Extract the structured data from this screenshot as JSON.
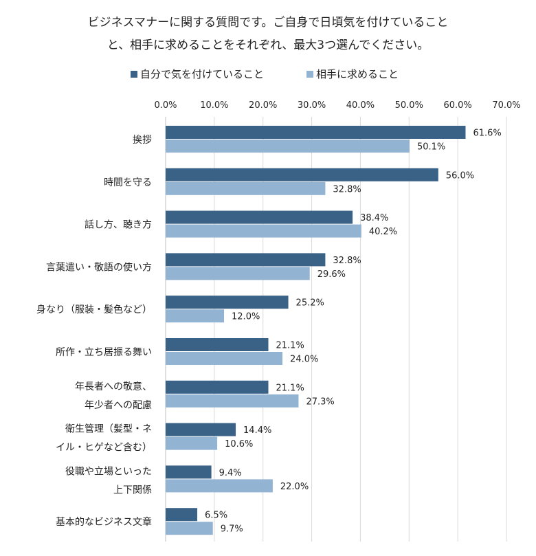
{
  "chart_data": {
    "type": "bar",
    "orientation": "horizontal",
    "title_lines": [
      "ビジネスマナーに関する質問です。ご自身で日頃気を付けていること",
      "と、相手に求めることをそれぞれ、最大3つ選んでください。"
    ],
    "legend_position": "top",
    "grid": true,
    "xlim": [
      0,
      70
    ],
    "x_ticks": [
      "0.0%",
      "10.0%",
      "20.0%",
      "30.0%",
      "40.0%",
      "50.0%",
      "60.0%",
      "70.0%"
    ],
    "categories": [
      [
        "挨拶"
      ],
      [
        "時間を守る"
      ],
      [
        "話し方、聴き方"
      ],
      [
        "言葉遣い・敬語の使い方"
      ],
      [
        "身なり（服装・髪色など）"
      ],
      [
        "所作・立ち居振る舞い"
      ],
      [
        "年長者への敬意、",
        "年少者への配慮"
      ],
      [
        "衛生管理（髪型・ネ",
        "イル・ヒゲなど含む）"
      ],
      [
        "役職や立場といった",
        "上下関係"
      ],
      [
        "基本的なビジネス文章"
      ]
    ],
    "series": [
      {
        "name": "自分で気を付けていること",
        "color": "#3a6186",
        "values": [
          61.6,
          56.0,
          38.4,
          32.8,
          25.2,
          21.1,
          21.1,
          14.4,
          9.4,
          6.5
        ],
        "labels": [
          "61.6%",
          "56.0%",
          "38.4%",
          "32.8%",
          "25.2%",
          "21.1%",
          "21.1%",
          "14.4%",
          "9.4%",
          "6.5%"
        ]
      },
      {
        "name": "相手に求めること",
        "color": "#93b3d2",
        "values": [
          50.1,
          32.8,
          40.2,
          29.6,
          12.0,
          24.0,
          27.3,
          10.6,
          22.0,
          9.7
        ],
        "labels": [
          "50.1%",
          "32.8%",
          "40.2%",
          "29.6%",
          "12.0%",
          "24.0%",
          "27.3%",
          "10.6%",
          "22.0%",
          "9.7%"
        ]
      }
    ]
  }
}
